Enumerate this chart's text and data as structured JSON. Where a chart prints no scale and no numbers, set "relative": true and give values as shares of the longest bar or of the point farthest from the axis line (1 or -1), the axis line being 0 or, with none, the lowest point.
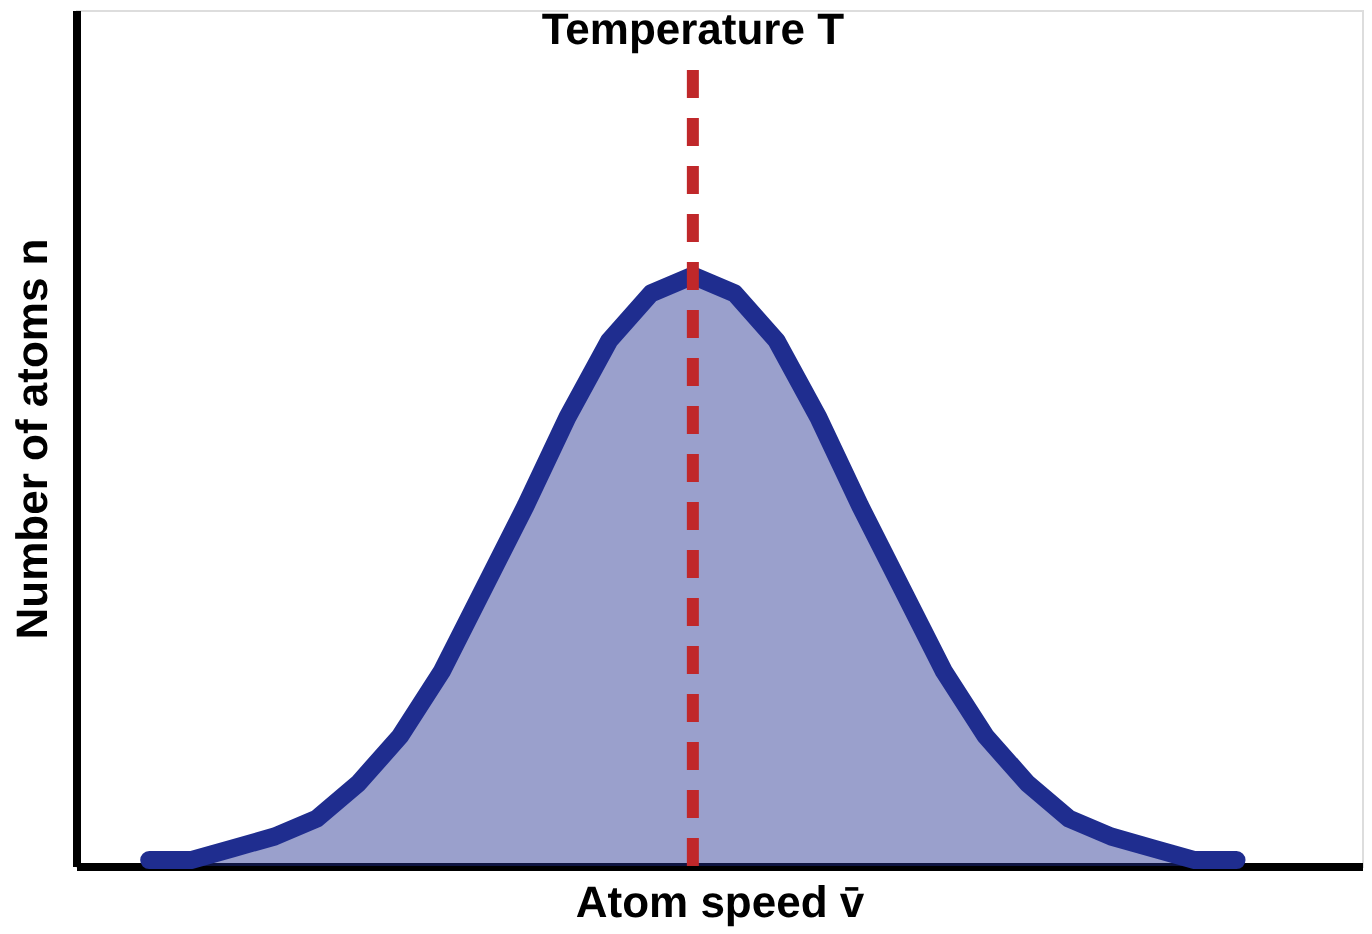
{
  "chart_data": {
    "type": "area",
    "relative": true,
    "xlabel": "Atom speed v̄",
    "ylabel": "Number of atoms n",
    "categories": [
      null,
      null,
      null,
      null,
      null,
      null,
      null,
      null,
      null,
      null,
      null,
      null,
      null,
      null,
      null,
      null,
      null,
      null,
      null,
      null,
      null,
      null,
      null,
      null,
      null,
      null,
      null
    ],
    "series": [
      {
        "color": "#1f2d8f",
        "values": [
          0.01,
          0.01,
          0.03,
          0.05,
          0.08,
          0.14,
          0.22,
          0.33,
          0.47,
          0.61,
          0.76,
          0.89,
          0.97,
          1,
          0.97,
          0.89,
          0.76,
          0.61,
          0.47,
          0.33,
          0.22,
          0.14,
          0.08,
          0.05,
          0.03,
          0.01,
          0.01
        ]
      }
    ],
    "annotations": [
      "Temperature T"
    ]
  }
}
